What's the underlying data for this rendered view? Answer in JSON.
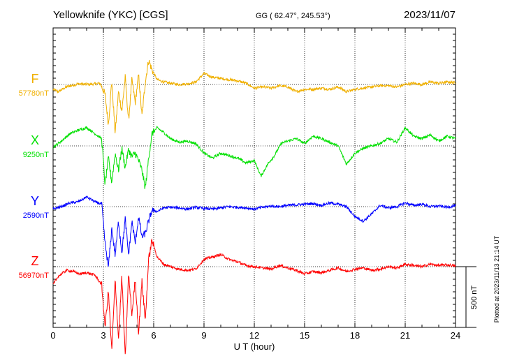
{
  "header": {
    "station": "Yellowknife (YKC)  [CGS]",
    "coords": "GG ( 62.47°, 245.53°)",
    "date": "2023/11/07"
  },
  "footer": {
    "plotted_at": "Plotted at 2023/11/13 21:14 UT"
  },
  "chart_data": {
    "type": "line",
    "xlabel": "U T (hour)",
    "xlim": [
      0,
      24
    ],
    "x_ticks": [
      "0",
      "3",
      "6",
      "9",
      "12",
      "15",
      "18",
      "21",
      "24"
    ],
    "grid": "dotted vertical every 3 h, dotted horizontal at each component baseline",
    "scale_bar": {
      "label": "500 nT",
      "value_nT": 500
    },
    "series": [
      {
        "name": "F",
        "baseline_label": "57780nT",
        "color": "#f0b000",
        "x": [
          0,
          0.3,
          0.8,
          1.5,
          2.2,
          2.8,
          3.1,
          3.3,
          3.5,
          3.7,
          3.9,
          4.1,
          4.3,
          4.5,
          4.7,
          4.9,
          5.1,
          5.3,
          5.5,
          5.7,
          5.9,
          6.2,
          6.6,
          7.0,
          7.5,
          8.0,
          8.5,
          9.0,
          9.5,
          10.0,
          10.5,
          11.0,
          11.5,
          12.0,
          12.5,
          13.0,
          13.5,
          14.0,
          14.5,
          15.0,
          15.5,
          16.0,
          16.5,
          17.0,
          17.5,
          18.0,
          18.5,
          19.0,
          19.5,
          20.0,
          20.5,
          21.0,
          21.5,
          22.0,
          22.5,
          23.0,
          23.5,
          24.0
        ],
        "values": [
          -40,
          -60,
          -20,
          5,
          0,
          10,
          -80,
          -330,
          30,
          -400,
          -60,
          -220,
          60,
          -300,
          40,
          -150,
          80,
          -260,
          20,
          200,
          120,
          40,
          20,
          10,
          0,
          5,
          20,
          90,
          60,
          50,
          40,
          30,
          10,
          -30,
          -20,
          -30,
          -10,
          -20,
          -60,
          -40,
          -40,
          -30,
          -40,
          -20,
          -60,
          -40,
          -30,
          -20,
          -10,
          -10,
          -20,
          0,
          10,
          0,
          20,
          10,
          20,
          15
        ]
      },
      {
        "name": "X",
        "baseline_label": "9250nT",
        "color": "#00e000",
        "x": [
          0,
          0.5,
          1.0,
          1.5,
          2.0,
          2.5,
          2.9,
          3.1,
          3.3,
          3.5,
          3.7,
          3.9,
          4.1,
          4.3,
          4.5,
          4.7,
          4.9,
          5.1,
          5.3,
          5.5,
          5.7,
          5.9,
          6.2,
          6.6,
          7.0,
          7.5,
          8.0,
          8.5,
          9.0,
          9.5,
          10.0,
          10.5,
          11.0,
          11.5,
          12.0,
          12.4,
          12.8,
          13.2,
          13.6,
          14.0,
          14.5,
          15.0,
          15.5,
          16.0,
          16.5,
          17.0,
          17.5,
          18.0,
          18.5,
          19.0,
          19.5,
          20.0,
          20.5,
          21.0,
          21.5,
          22.0,
          22.5,
          23.0,
          23.5,
          24.0
        ],
        "values": [
          -10,
          40,
          100,
          130,
          150,
          100,
          60,
          -320,
          -100,
          -300,
          -60,
          -200,
          -20,
          -180,
          -30,
          -90,
          -60,
          -120,
          -200,
          -350,
          -100,
          100,
          150,
          110,
          60,
          30,
          40,
          20,
          -60,
          -100,
          -60,
          -80,
          -100,
          -140,
          -120,
          -250,
          -150,
          -80,
          20,
          40,
          60,
          20,
          80,
          60,
          30,
          0,
          -150,
          -60,
          -20,
          0,
          20,
          60,
          30,
          150,
          80,
          60,
          90,
          40,
          80,
          60
        ]
      },
      {
        "name": "Y",
        "baseline_label": "2590nT",
        "color": "#0000ff",
        "x": [
          0,
          0.5,
          1.0,
          1.5,
          2.0,
          2.5,
          2.9,
          3.1,
          3.3,
          3.5,
          3.7,
          3.9,
          4.1,
          4.3,
          4.5,
          4.7,
          4.9,
          5.1,
          5.3,
          5.5,
          5.7,
          5.9,
          6.2,
          6.6,
          7.0,
          7.5,
          8.0,
          8.5,
          9.0,
          9.5,
          10.0,
          10.5,
          11.0,
          11.5,
          12.0,
          12.5,
          13.0,
          13.5,
          14.0,
          14.5,
          15.0,
          15.5,
          16.0,
          16.5,
          17.0,
          17.5,
          18.0,
          18.5,
          19.0,
          19.5,
          20.0,
          20.5,
          21.0,
          21.5,
          22.0,
          22.5,
          23.0,
          23.5,
          24.0
        ],
        "values": [
          -20,
          0,
          30,
          40,
          80,
          40,
          20,
          -300,
          -500,
          -180,
          -400,
          -120,
          -380,
          -100,
          -400,
          -120,
          -300,
          -80,
          -250,
          -220,
          -120,
          -30,
          -40,
          -10,
          -5,
          -10,
          -20,
          -5,
          -15,
          -20,
          -10,
          0,
          -5,
          -10,
          -20,
          -5,
          5,
          0,
          10,
          15,
          20,
          25,
          10,
          30,
          20,
          0,
          -80,
          -120,
          -60,
          10,
          -10,
          0,
          30,
          10,
          20,
          0,
          5,
          -5,
          10
        ]
      },
      {
        "name": "Z",
        "baseline_label": "56970nT",
        "color": "#ff0000",
        "x": [
          0,
          0.3,
          0.8,
          1.2,
          1.6,
          2.0,
          2.5,
          2.9,
          3.1,
          3.3,
          3.5,
          3.7,
          3.9,
          4.1,
          4.3,
          4.5,
          4.7,
          4.9,
          5.1,
          5.3,
          5.5,
          5.7,
          5.9,
          6.2,
          6.6,
          7.0,
          7.5,
          8.0,
          8.5,
          9.0,
          9.5,
          10.0,
          10.5,
          11.0,
          11.5,
          12.0,
          12.5,
          13.0,
          13.5,
          14.0,
          14.5,
          15.0,
          15.5,
          16.0,
          16.5,
          17.0,
          17.5,
          18.0,
          18.5,
          19.0,
          19.5,
          20.0,
          20.5,
          21.0,
          21.5,
          22.0,
          22.5,
          23.0,
          23.5,
          24.0
        ],
        "values": [
          -150,
          -80,
          -30,
          -40,
          -60,
          -50,
          -70,
          -150,
          -500,
          -200,
          -700,
          -100,
          -600,
          -80,
          -750,
          -60,
          -400,
          -100,
          -550,
          -120,
          -450,
          60,
          220,
          80,
          20,
          0,
          -20,
          -30,
          -20,
          60,
          80,
          100,
          60,
          40,
          10,
          0,
          -10,
          -20,
          10,
          -10,
          -30,
          -60,
          -40,
          -50,
          -30,
          -10,
          -40,
          -20,
          -10,
          -30,
          -20,
          0,
          -10,
          20,
          10,
          0,
          20,
          10,
          15,
          5
        ]
      }
    ]
  }
}
